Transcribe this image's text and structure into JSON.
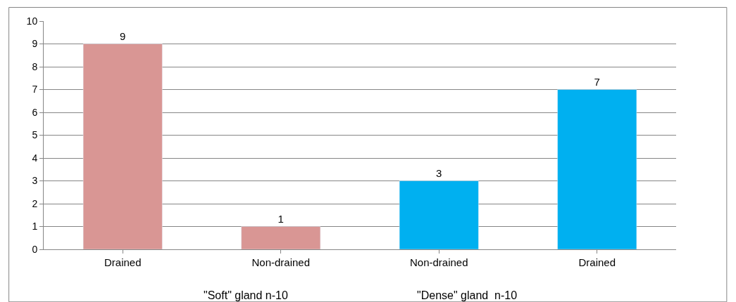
{
  "chart_data": {
    "type": "bar",
    "categories": [
      "Drained",
      "Non-drained",
      "Non-drained",
      "Drained"
    ],
    "values": [
      9,
      1,
      3,
      7
    ],
    "colors": [
      "#d99694",
      "#d99694",
      "#00b0f0",
      "#00b0f0"
    ],
    "ylim": [
      0,
      10
    ],
    "yticks": [
      0,
      1,
      2,
      3,
      4,
      5,
      6,
      7,
      8,
      9,
      10
    ],
    "grid": "y",
    "data_labels": true,
    "legend": false,
    "annotations": [
      "\"Soft\" gland n-10",
      "\"Dense\" gland  n-10"
    ]
  }
}
